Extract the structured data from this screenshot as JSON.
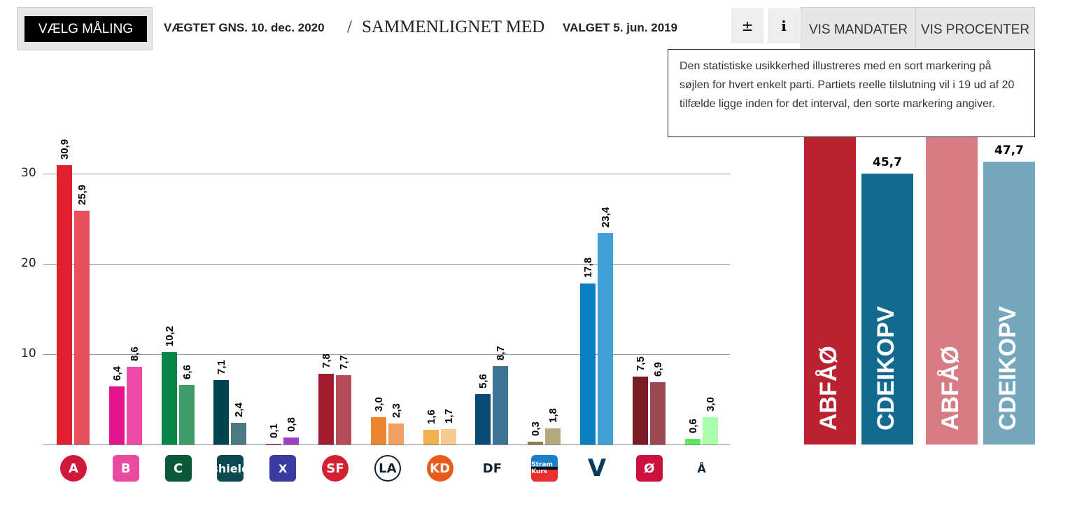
{
  "header": {
    "pick_label": "VÆLG MÅLING",
    "weighted": "VÆGTET GNS. 10. dec. 2020",
    "slash": "/",
    "compared": "SAMMENLIGNET MED",
    "election": "VALGET 5. jun. 2019",
    "plusminus": "±",
    "info": "i",
    "vis_mandater": "VIS MANDATER",
    "vis_procenter": "VIS PROCENTER"
  },
  "tooltip": "Den statistiske usikkerhed illustreres med en sort markering på søjlen for hvert enkelt parti. Partiets reelle tilslutning vil i 19 ud af 20 tilfælde ligge inden for det interval, den sorte markering angiver.",
  "chart_data": {
    "type": "bar",
    "ylim": [
      0,
      30
    ],
    "yticks": [
      "10",
      "20",
      "30"
    ],
    "grid": true,
    "categories": [
      "A",
      "B",
      "C",
      "D",
      "K",
      "F",
      "I",
      "Q",
      "O",
      "P",
      "V",
      "Ø",
      "Å"
    ],
    "logos": [
      "A",
      "B",
      "C",
      "shield",
      "X",
      "SF",
      "LA",
      "KD",
      "DF",
      "Stram Kurs",
      "V",
      "Ø",
      "Å"
    ],
    "series": [
      {
        "values": [
          30.9,
          6.4,
          10.2,
          7.1,
          0.1,
          7.8,
          3.0,
          1.6,
          5.6,
          0.3,
          17.8,
          7.5,
          0.6
        ],
        "labels": [
          "30,9",
          "6,4",
          "10,2",
          "7,1",
          "0,1",
          "7,8",
          "3,0",
          "1,6",
          "5,6",
          "0,3",
          "17,8",
          "7,5",
          "0,6"
        ]
      },
      {
        "values": [
          25.9,
          8.6,
          6.6,
          2.4,
          0.8,
          7.7,
          2.3,
          1.7,
          8.7,
          1.8,
          23.4,
          6.9,
          3.0
        ],
        "labels": [
          "25,9",
          "8,6",
          "6,6",
          "2,4",
          "0,8",
          "7,7",
          "2,3",
          "1,7",
          "8,7",
          "1,8",
          "23,4",
          "6,9",
          "3,0"
        ]
      }
    ],
    "colors": [
      [
        "#e0202f",
        "#e5505b"
      ],
      [
        "#e5148a",
        "#ee4aa8"
      ],
      [
        "#0a8545",
        "#3e9d6b"
      ],
      [
        "#004450",
        "#4d7a82"
      ],
      [
        "#c01030",
        "#a040c0"
      ],
      [
        "#a11d2d",
        "#b34c56"
      ],
      [
        "#ea8630",
        "#f0a060"
      ],
      [
        "#f4b04a",
        "#f6cc90"
      ],
      [
        "#064a75",
        "#3d7494"
      ],
      [
        "#8b7d4d",
        "#b1aa80"
      ],
      [
        "#0a80c0",
        "#3fa0d6"
      ],
      [
        "#7a1c24",
        "#9a4a50"
      ],
      [
        "#55ee55",
        "#aaffaa"
      ]
    ],
    "logo_colors": [
      "#d0183a",
      "#ea4aa0",
      "#0a5a3a",
      "#0a4a50",
      "#3a3aa0",
      "#d42030",
      "#ffffff",
      "#e85a18",
      "#ffffff",
      "#1a80c8",
      "#ffffff",
      "#cc1040",
      "#ffffff"
    ]
  },
  "blocs": [
    {
      "label": "ABFÅØ",
      "color": "#bb2230",
      "value": null
    },
    {
      "label": "CDEIKOPV",
      "color": "#136a8f",
      "value": 45.7,
      "value_label": "45,7"
    },
    {
      "label": "ABFÅØ",
      "color": "#d77c83",
      "value": null
    },
    {
      "label": "CDEIKOPV",
      "color": "#74a7bc",
      "value": 47.7,
      "value_label": "47,7"
    }
  ]
}
